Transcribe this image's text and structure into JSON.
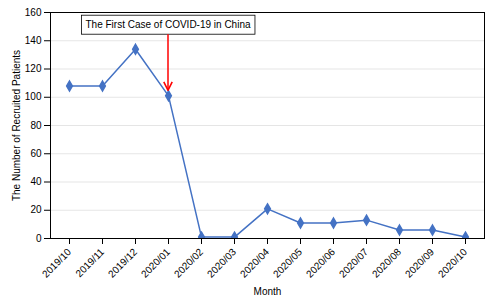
{
  "chart_data": {
    "type": "line",
    "xlabel": "Month",
    "ylabel": "The Number of Recruited Patients",
    "categories": [
      "2019/10",
      "2019/11",
      "2019/12",
      "2020/01",
      "2020/02",
      "2020/03",
      "2020/04",
      "2020/05",
      "2020/06",
      "2020/07",
      "2020/08",
      "2020/09",
      "2020/10"
    ],
    "values": [
      108,
      108,
      134,
      101,
      1,
      1,
      21,
      11,
      11,
      13,
      6,
      6,
      1
    ],
    "color": "#4472C4",
    "marker": "diamond",
    "ylim": [
      0,
      160
    ],
    "yticks": [
      0,
      20,
      40,
      60,
      80,
      100,
      120,
      140,
      160
    ],
    "grid": true,
    "annotations": [
      {
        "text": "The First Case of COVID-19 in China",
        "x": "2020/01",
        "color": "red"
      }
    ]
  }
}
